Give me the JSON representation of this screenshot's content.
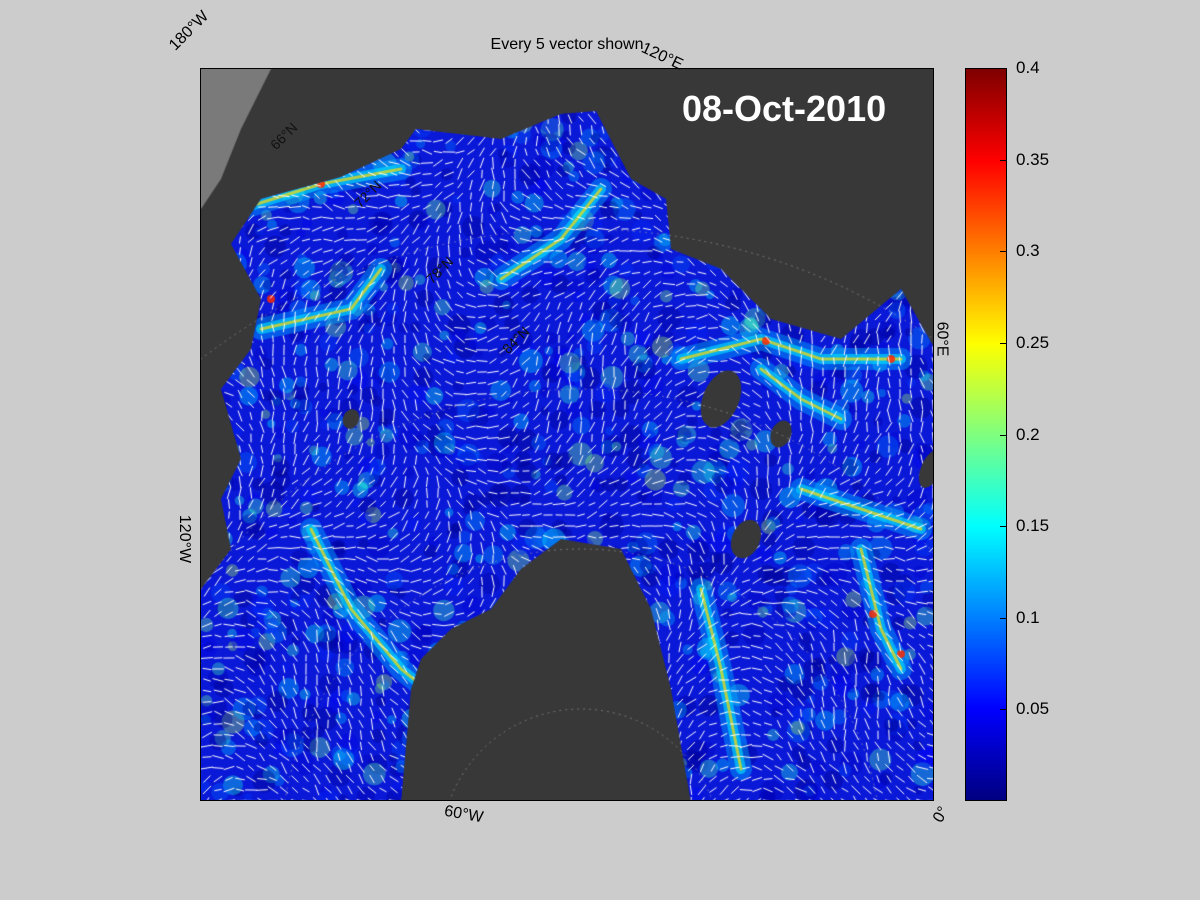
{
  "title": "Every 5 vector shown",
  "date": "08-Oct-2010",
  "lon_labels": {
    "w180": "180°W",
    "e120": "120°E",
    "e60": "60°E",
    "w120": "120°W",
    "w60": "60°W",
    "zero": "0°"
  },
  "lat_labels": {
    "n66": "66°N",
    "n72": "72°N",
    "n78": "78°N",
    "n84": "84°N"
  },
  "colorbar": {
    "min": 0,
    "max": 0.4,
    "colormap": "jet",
    "ticks": [
      "0.05",
      "0.1",
      "0.15",
      "0.2",
      "0.25",
      "0.3",
      "0.35",
      "0.4"
    ],
    "tick_values": [
      0.05,
      0.1,
      0.15,
      0.2,
      0.25,
      0.3,
      0.35,
      0.4
    ]
  },
  "colors": {
    "background": "#cccccc",
    "land": "#3a3a3a",
    "ocean_low": "#0000c8",
    "vector": "#ffffff"
  }
}
